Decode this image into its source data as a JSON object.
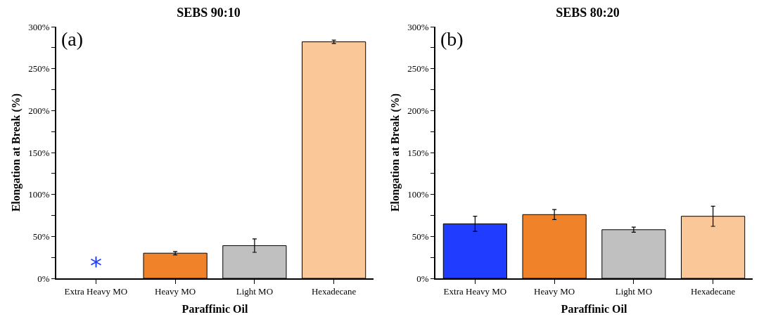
{
  "chart_data": [
    {
      "type": "bar",
      "title": "SEBS 90:10",
      "xlabel": "Paraffinic Oil",
      "ylabel": "Elongation at Break (%)",
      "categories": [
        "Extra Heavy MO",
        "Heavy MO",
        "Light MO",
        "Hexadecane"
      ],
      "values": [
        null,
        30,
        39,
        282
      ],
      "errors": [
        null,
        2,
        8,
        2
      ],
      "colors": [
        "#1f3cff",
        "#f0832a",
        "#c0c0c0",
        "#fac898"
      ],
      "ylim": [
        0,
        300
      ],
      "yticks": [
        {
          "value": 0,
          "label": "0%"
        },
        {
          "value": 25,
          "label": null
        },
        {
          "value": 50,
          "label": "50%"
        },
        {
          "value": 75,
          "label": null
        },
        {
          "value": 100,
          "label": "100%"
        },
        {
          "value": 125,
          "label": null
        },
        {
          "value": 150,
          "label": "150%"
        },
        {
          "value": 175,
          "label": null
        },
        {
          "value": 200,
          "label": "200%"
        },
        {
          "value": 225,
          "label": null
        },
        {
          "value": 250,
          "label": "250%"
        },
        {
          "value": 275,
          "label": null
        },
        {
          "value": 300,
          "label": "300%"
        }
      ],
      "grid": false,
      "annotations": [
        "(a)",
        "*"
      ]
    },
    {
      "type": "bar",
      "title": "SEBS 80:20",
      "xlabel": "Paraffinic Oil",
      "ylabel": "Elongation at Break (%)",
      "categories": [
        "Extra Heavy MO",
        "Heavy MO",
        "Light MO",
        "Hexadecane"
      ],
      "values": [
        65,
        76,
        58,
        74
      ],
      "errors": [
        9,
        6,
        3,
        12
      ],
      "colors": [
        "#1f3cff",
        "#f0832a",
        "#c0c0c0",
        "#fac898"
      ],
      "ylim": [
        0,
        300
      ],
      "yticks": [
        {
          "value": 0,
          "label": "0%"
        },
        {
          "value": 25,
          "label": null
        },
        {
          "value": 50,
          "label": "50%"
        },
        {
          "value": 75,
          "label": null
        },
        {
          "value": 100,
          "label": "100%"
        },
        {
          "value": 125,
          "label": null
        },
        {
          "value": 150,
          "label": "150%"
        },
        {
          "value": 175,
          "label": null
        },
        {
          "value": 200,
          "label": "200%"
        },
        {
          "value": 225,
          "label": null
        },
        {
          "value": 250,
          "label": "250%"
        },
        {
          "value": 275,
          "label": null
        },
        {
          "value": 300,
          "label": "300%"
        }
      ],
      "grid": false,
      "annotations": [
        "(b)"
      ]
    }
  ]
}
